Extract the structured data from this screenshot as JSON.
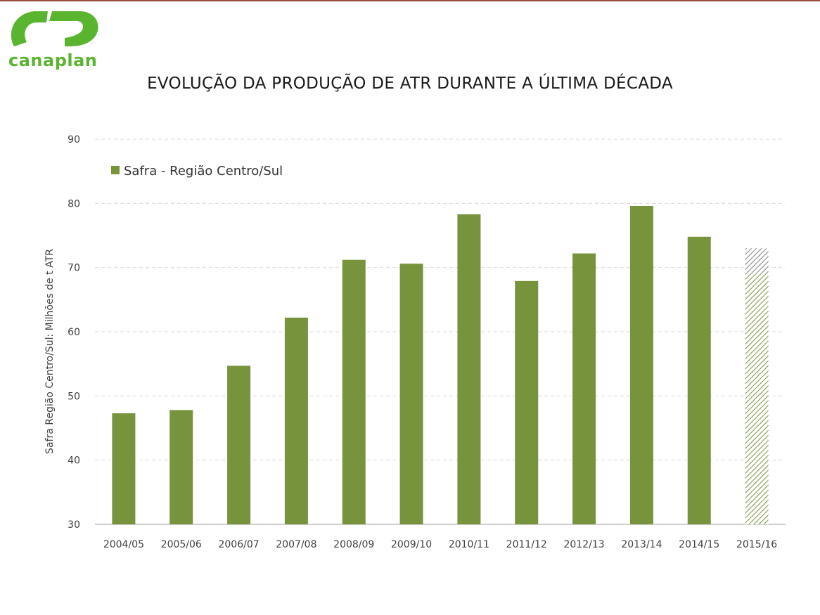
{
  "logo": {
    "text": "canaplan",
    "color": "#5bb430"
  },
  "title": "EVOLUÇÃO DA PRODUÇÃO DE ATR DURANTE A ÚLTIMA DÉCADA",
  "colors": {
    "bar": "#77933c",
    "hatch_green": "#77933c",
    "hatch_gray": "#7f7f7f",
    "grid": "#d9d9d9"
  },
  "chart_data": {
    "type": "bar",
    "title": "EVOLUÇÃO DA PRODUÇÃO DE ATR DURANTE A ÚLTIMA DÉCADA",
    "xlabel": "",
    "ylabel": "Safra Região Centro/Sul: Milhões de t ATR",
    "ylim": [
      30,
      90
    ],
    "yticks": [
      30,
      40,
      50,
      60,
      70,
      80,
      90
    ],
    "grid": true,
    "legend_position": "top-left",
    "categories": [
      "2004/05",
      "2005/06",
      "2006/07",
      "2007/08",
      "2008/09",
      "2009/10",
      "2010/11",
      "2011/12",
      "2012/13",
      "2013/14",
      "2014/15",
      "2015/16"
    ],
    "series": [
      {
        "name": "Safra - Região Centro/Sul",
        "values": [
          47.3,
          47.8,
          54.7,
          62.2,
          71.2,
          70.6,
          78.3,
          67.9,
          72.2,
          79.6,
          74.8,
          69.0
        ]
      }
    ],
    "projection": {
      "category": "2015/16",
      "base": 69.0,
      "top": 73.0,
      "style": "hatched"
    }
  }
}
